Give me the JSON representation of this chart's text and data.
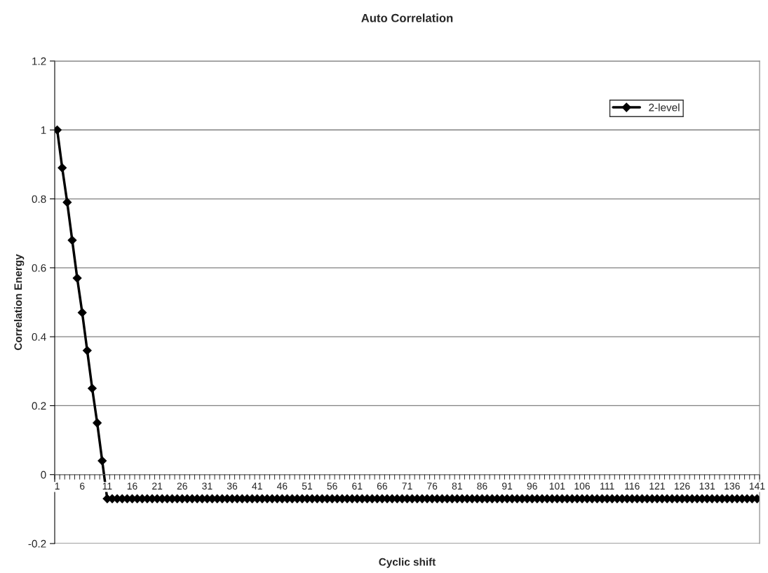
{
  "chart_data": {
    "type": "line",
    "title": "Auto Correlation",
    "xlabel": "Cyclic shift",
    "ylabel": "Correlation Energy",
    "categories": [
      "1",
      null,
      null,
      null,
      null,
      "6",
      null,
      null,
      null,
      null,
      "11",
      null,
      null,
      null,
      null,
      "16",
      null,
      null,
      null,
      null,
      "21",
      null,
      null,
      null,
      null,
      "26",
      null,
      null,
      null,
      null,
      "31",
      null,
      null,
      null,
      null,
      "36",
      null,
      null,
      null,
      null,
      "41",
      null,
      null,
      null,
      null,
      "46",
      null,
      null,
      null,
      null,
      "51",
      null,
      null,
      null,
      null,
      "56",
      null,
      null,
      null,
      null,
      "61",
      null,
      null,
      null,
      null,
      "66",
      null,
      null,
      null,
      null,
      "71",
      null,
      null,
      null,
      null,
      "76",
      null,
      null,
      null,
      null,
      "81",
      null,
      null,
      null,
      null,
      "86",
      null,
      null,
      null,
      null,
      "91",
      null,
      null,
      null,
      null,
      "96",
      null,
      null,
      null,
      null,
      "101",
      null,
      null,
      null,
      null,
      "106",
      null,
      null,
      null,
      null,
      "111",
      null,
      null,
      null,
      null,
      "116",
      null,
      null,
      null,
      null,
      "121",
      null,
      null,
      null,
      null,
      "126",
      null,
      null,
      null,
      null,
      "131",
      null,
      null,
      null,
      null,
      "136",
      null,
      null,
      null,
      null,
      "141"
    ],
    "series": [
      {
        "name": "2-level",
        "color": "#000000",
        "values": [
          1,
          0.89,
          0.79,
          0.68,
          0.57,
          0.47,
          0.36,
          0.25,
          0.15,
          0.04,
          -0.07,
          -0.07,
          -0.07,
          -0.07,
          -0.07,
          -0.07,
          -0.07,
          -0.07,
          -0.07,
          -0.07,
          -0.07,
          -0.07,
          -0.07,
          -0.07,
          -0.07,
          -0.07,
          -0.07,
          -0.07,
          -0.07,
          -0.07,
          -0.07,
          -0.07,
          -0.07,
          -0.07,
          -0.07,
          -0.07,
          -0.07,
          -0.07,
          -0.07,
          -0.07,
          -0.07,
          -0.07,
          -0.07,
          -0.07,
          -0.07,
          -0.07,
          -0.07,
          -0.07,
          -0.07,
          -0.07,
          -0.07,
          -0.07,
          -0.07,
          -0.07,
          -0.07,
          -0.07,
          -0.07,
          -0.07,
          -0.07,
          -0.07,
          -0.07,
          -0.07,
          -0.07,
          -0.07,
          -0.07,
          -0.07,
          -0.07,
          -0.07,
          -0.07,
          -0.07,
          -0.07,
          -0.07,
          -0.07,
          -0.07,
          -0.07,
          -0.07,
          -0.07,
          -0.07,
          -0.07,
          -0.07,
          -0.07,
          -0.07,
          -0.07,
          -0.07,
          -0.07,
          -0.07,
          -0.07,
          -0.07,
          -0.07,
          -0.07,
          -0.07,
          -0.07,
          -0.07,
          -0.07,
          -0.07,
          -0.07,
          -0.07,
          -0.07,
          -0.07,
          -0.07,
          -0.07,
          -0.07,
          -0.07,
          -0.07,
          -0.07,
          -0.07,
          -0.07,
          -0.07,
          -0.07,
          -0.07,
          -0.07,
          -0.07,
          -0.07,
          -0.07,
          -0.07,
          -0.07,
          -0.07,
          -0.07,
          -0.07,
          -0.07,
          -0.07,
          -0.07,
          -0.07,
          -0.07,
          -0.07,
          -0.07,
          -0.07,
          -0.07,
          -0.07,
          -0.07,
          -0.07,
          -0.07,
          -0.07,
          -0.07,
          -0.07,
          -0.07,
          -0.07,
          -0.07,
          -0.07,
          -0.07,
          -0.07
        ]
      }
    ],
    "ylim": [
      -0.2,
      1.2
    ],
    "yticks": [
      -0.2,
      0,
      0.2,
      0.4,
      0.6,
      0.8,
      1,
      1.2
    ],
    "grid": "y",
    "legend": "top right",
    "marker": "diamond",
    "line_style": "solid"
  }
}
